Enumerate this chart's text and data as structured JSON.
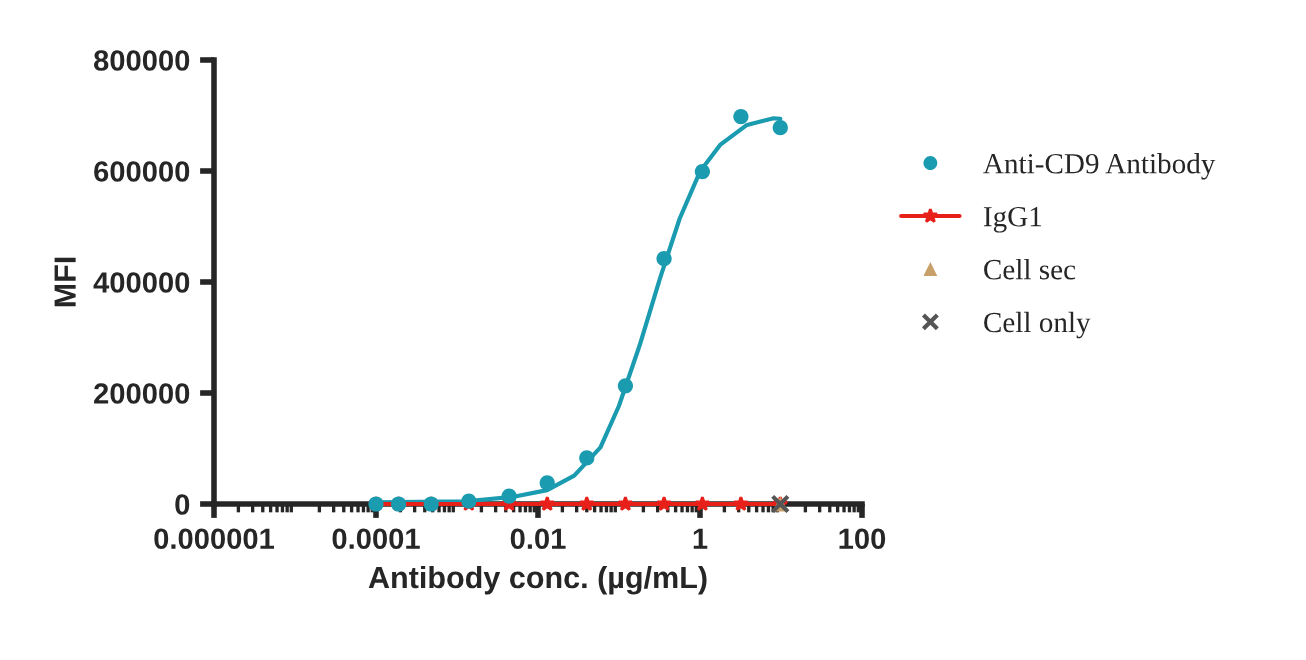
{
  "chart_data": {
    "type": "scatter",
    "xlabel": "Antibody conc. (µg/mL)",
    "ylabel": "MFI",
    "log": "x",
    "xlim": [
      1e-06,
      100
    ],
    "xticks": [
      {
        "value": 1e-06,
        "label": "0.000001"
      },
      {
        "value": 0.0001,
        "label": "0.0001"
      },
      {
        "value": 0.01,
        "label": "0.01"
      },
      {
        "value": 1,
        "label": "1"
      },
      {
        "value": 100,
        "label": "100"
      }
    ],
    "ylim": [
      0,
      800000
    ],
    "yticks": [
      0,
      200000,
      400000,
      600000,
      800000
    ],
    "grid": false,
    "legend": "right",
    "series": [
      {
        "name": "Anti-CD9 Antibody",
        "marker": "circle",
        "color": "#1a9bb0",
        "x": [
          0.0001,
          0.00019,
          0.00048,
          0.0014,
          0.0044,
          0.013,
          0.04,
          0.12,
          0.36,
          1.07,
          3.2,
          9.8
        ],
        "values": [
          0,
          0,
          0,
          5000,
          14000,
          38000,
          83000,
          213000,
          442000,
          599000,
          698000,
          678000
        ]
      },
      {
        "type": "line",
        "marker": "none",
        "color": "#1a9bb0",
        "x": [
          0.0001,
          0.0013,
          0.005,
          0.013,
          0.028,
          0.059,
          0.1,
          0.18,
          0.32,
          0.56,
          1.0,
          1.77,
          3.8,
          8.1,
          9.8
        ],
        "values": [
          3000,
          5000,
          13000,
          25000,
          51000,
          102000,
          177000,
          286000,
          406000,
          514000,
          599000,
          647000,
          683000,
          695000,
          694000
        ]
      },
      {
        "name": "IgG1",
        "type": "line",
        "marker": "star",
        "color": "#e8201a",
        "x": [
          0.0001,
          0.00019,
          0.00048,
          0.0014,
          0.0044,
          0.013,
          0.04,
          0.12,
          0.36,
          1.07,
          3.2,
          9.8
        ],
        "values": [
          0,
          0,
          0,
          0,
          0,
          0,
          0,
          0,
          0,
          0,
          0,
          0
        ]
      },
      {
        "name": "Cell sec",
        "marker": "triangle",
        "color": "#c8a06a",
        "x": [
          9.8
        ],
        "values": [
          0
        ]
      },
      {
        "name": "Cell only",
        "marker": "cross",
        "color": "#555555",
        "x": [
          9.8
        ],
        "values": [
          0
        ]
      }
    ]
  }
}
